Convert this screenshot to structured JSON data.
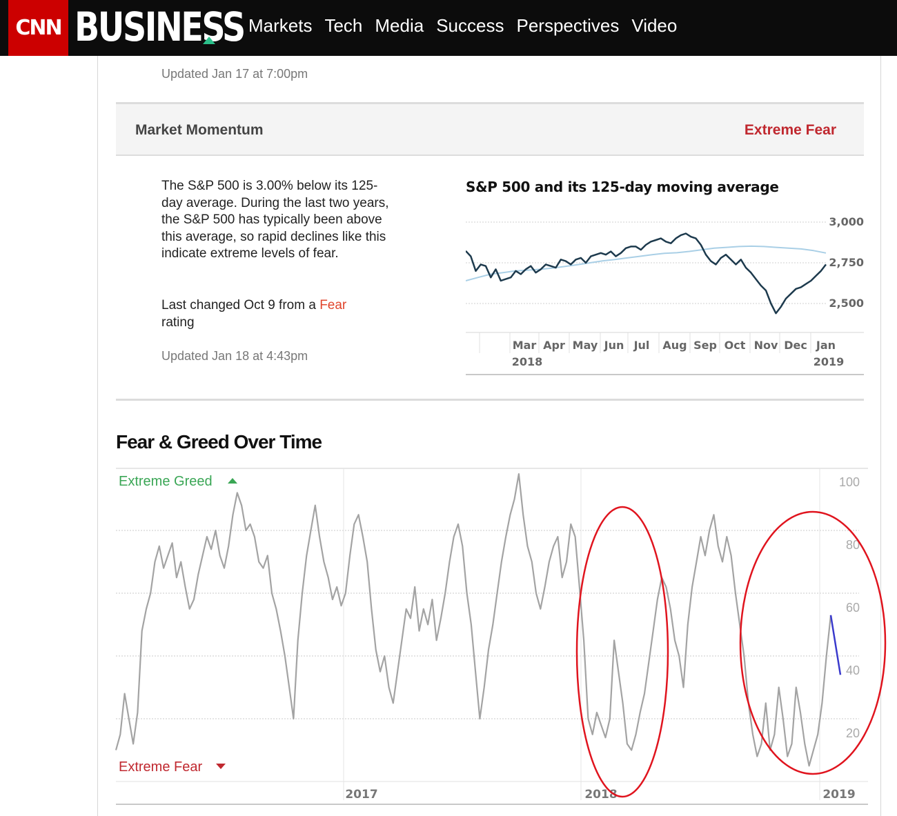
{
  "header": {
    "logo_text": "CNN",
    "brand_text": "BUSINESS",
    "nav": [
      "Markets",
      "Tech",
      "Media",
      "Success",
      "Perspectives",
      "Video"
    ]
  },
  "updated_top": "Updated Jan 17 at 7:00pm",
  "momentum": {
    "label": "Market Momentum",
    "rating": "Extreme Fear",
    "description": "The S&P 500 is 3.00% below its 125-day average. During the last two years, the S&P 500 has typically been above this average, so rapid declines like this indicate extreme levels of fear.",
    "changed_prefix": "Last changed Oct 9 from a ",
    "changed_rating": "Fear",
    "changed_suffix": "rating",
    "updated": "Updated Jan 18 at 4:43pm"
  },
  "colors": {
    "cnn_red": "#cc0000",
    "extreme_fear": "#c0282f",
    "extreme_greed": "#3aa655",
    "sp_line": "#1d3a4d",
    "ma_line": "#a9cfe6",
    "fg_line": "#a3a3a3",
    "annotation": "#e0141e",
    "latest_segment": "#3a3acc"
  },
  "chart_data": [
    {
      "type": "line",
      "title": "S&P 500 and its 125-day moving average",
      "x_tick_labels": [
        "Mar",
        "Apr",
        "May",
        "Jun",
        "Jul",
        "Aug",
        "Sep",
        "Oct",
        "Nov",
        "Dec",
        "Jan"
      ],
      "x_year_labels": [
        "2018",
        "2019"
      ],
      "y_tick_labels": [
        "3,000",
        "2,750",
        "2,500"
      ],
      "ylim": [
        2350,
        3000
      ],
      "grid": true,
      "series": [
        {
          "values": [
            2823,
            2790,
            2700,
            2740,
            2730,
            2660,
            2710,
            2640,
            2650,
            2660,
            2700,
            2680,
            2710,
            2730,
            2690,
            2710,
            2740,
            2730,
            2720,
            2770,
            2760,
            2740,
            2770,
            2780,
            2750,
            2790,
            2800,
            2810,
            2800,
            2820,
            2790,
            2810,
            2840,
            2850,
            2850,
            2830,
            2860,
            2880,
            2890,
            2900,
            2880,
            2870,
            2900,
            2920,
            2930,
            2910,
            2900,
            2860,
            2800,
            2760,
            2740,
            2780,
            2800,
            2770,
            2740,
            2770,
            2720,
            2690,
            2650,
            2610,
            2580,
            2500,
            2440,
            2480,
            2530,
            2560,
            2590,
            2600,
            2620,
            2640,
            2670,
            2700,
            2740
          ]
        },
        {
          "values": [
            2640,
            2660,
            2680,
            2690,
            2700,
            2705,
            2710,
            2718,
            2728,
            2738,
            2750,
            2762,
            2770,
            2780,
            2790,
            2800,
            2808,
            2812,
            2820,
            2830,
            2840,
            2845,
            2850,
            2852,
            2850,
            2845,
            2840,
            2835,
            2825,
            2810
          ]
        }
      ]
    },
    {
      "type": "line",
      "title": "Fear & Greed Over Time",
      "x_tick_labels": [
        "2017",
        "2018",
        "2019"
      ],
      "y_tick_labels": [
        "100",
        "80",
        "60",
        "40",
        "20"
      ],
      "ylim": [
        0,
        100
      ],
      "grid": true,
      "top_label": "Extreme Greed",
      "bottom_label": "Extreme Fear",
      "series": [
        {
          "values": [
            10,
            15,
            28,
            20,
            12,
            22,
            48,
            55,
            60,
            70,
            75,
            68,
            72,
            76,
            65,
            70,
            62,
            55,
            58,
            66,
            72,
            78,
            74,
            80,
            72,
            68,
            75,
            85,
            92,
            88,
            80,
            82,
            78,
            70,
            68,
            72,
            60,
            55,
            48,
            40,
            30,
            20,
            45,
            60,
            72,
            80,
            88,
            78,
            70,
            65,
            58,
            62,
            56,
            60,
            72,
            82,
            85,
            78,
            70,
            55,
            42,
            35,
            40,
            30,
            25,
            35,
            45,
            55,
            52,
            62,
            48,
            55,
            50,
            58,
            45,
            52,
            60,
            70,
            78,
            82,
            75,
            60,
            50,
            35,
            20,
            30,
            42,
            50,
            60,
            70,
            78,
            85,
            90,
            98,
            85,
            75,
            70,
            60,
            55,
            62,
            70,
            75,
            78,
            65,
            70,
            82,
            78,
            62,
            45,
            20,
            15,
            22,
            18,
            14,
            20,
            45,
            35,
            25,
            12,
            10,
            15,
            22,
            28,
            38,
            48,
            58,
            65,
            62,
            55,
            45,
            40,
            30,
            50,
            62,
            70,
            78,
            72,
            80,
            85,
            75,
            70,
            78,
            72,
            60,
            50,
            40,
            25,
            15,
            8,
            12,
            25,
            10,
            15,
            30,
            20,
            8,
            12,
            30,
            22,
            12,
            5,
            10,
            15,
            25,
            40,
            53
          ]
        },
        {
          "values": [
            53,
            34
          ]
        }
      ]
    }
  ]
}
